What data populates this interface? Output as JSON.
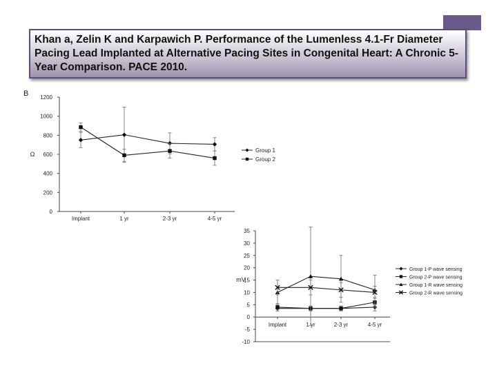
{
  "slide": {
    "citation": "Khan a, Zelin K and Karpawich P. Performance of the Lumenless 4.1-Fr Diameter Pacing Lead Implanted at Alternative Pacing Sites in Congenital Heart: A Chronic 5-Year Comparison. PACE 2010.",
    "panel_label": "B",
    "accent_color": "#6a5a8a"
  },
  "chart_data": [
    {
      "type": "line",
      "title": "",
      "ylabel": "Ω",
      "xlabel": "",
      "categories": [
        "Implant",
        "1 yr",
        "2-3 yr",
        "4-5 yr"
      ],
      "ylim": [
        0,
        1200
      ],
      "yticks": [
        0,
        200,
        400,
        600,
        800,
        1000,
        1200
      ],
      "grid": false,
      "legend": "right",
      "series": [
        {
          "name": "Group 1",
          "marker": "diamond",
          "values": [
            750,
            805,
            715,
            705
          ],
          "err": [
            80,
            290,
            110,
            70
          ]
        },
        {
          "name": "Group 2",
          "marker": "square",
          "values": [
            885,
            590,
            635,
            560
          ],
          "err": [
            45,
            65,
            75,
            75
          ]
        }
      ]
    },
    {
      "type": "line",
      "title": "",
      "ylabel": "mV",
      "xlabel": "",
      "categories": [
        "Implant",
        "1 yr",
        "2-3 yr",
        "4-5 yr"
      ],
      "ylim": [
        -10,
        35
      ],
      "yticks": [
        -10,
        -5,
        0,
        5,
        10,
        15,
        20,
        25,
        30,
        35
      ],
      "grid": false,
      "legend": "right",
      "series": [
        {
          "name": "Group 1-P wave sensing",
          "marker": "diamond",
          "values": [
            3.5,
            3.5,
            3.5,
            4
          ],
          "err": [
            1,
            1,
            1,
            1.5
          ]
        },
        {
          "name": "Group 2-P wave sensing",
          "marker": "square",
          "values": [
            4,
            3.5,
            3.5,
            6
          ],
          "err": [
            1.5,
            1,
            1,
            2
          ]
        },
        {
          "name": "Group 1-R wave sensing",
          "marker": "triangle",
          "values": [
            10,
            16.5,
            15.5,
            11
          ],
          "err": [
            5,
            20,
            9.5,
            6
          ]
        },
        {
          "name": "Group 2-R wave sensing",
          "marker": "cross",
          "values": [
            12,
            12,
            11,
            10
          ],
          "err": [
            3,
            3,
            3,
            2.5
          ]
        }
      ]
    }
  ]
}
